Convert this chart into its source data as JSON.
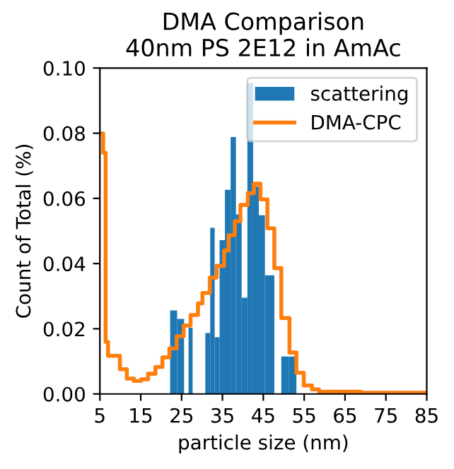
{
  "chart_data": {
    "type": "histogram",
    "title": "DMA Comparison\n40nm PS 2E12 in AmAc",
    "xlabel": "particle size (nm)",
    "ylabel": "Count of Total (%)",
    "bins": [
      22.2,
      23.9,
      25.6,
      26.7,
      27.7,
      30.8,
      32.0,
      33.1,
      34.3,
      35.6,
      37.0,
      38.3,
      39.7,
      41.1,
      42.5,
      43.9,
      45.4,
      47.7,
      49.4,
      51.2,
      53.1
    ],
    "series": [
      {
        "name": "scattering",
        "color": "#1f77b4",
        "values": [
          0.0256,
          0.023,
          0,
          0.0203,
          0,
          0.0187,
          0.051,
          0.0174,
          0.0472,
          0.0626,
          0.0788,
          0.0551,
          0.0295,
          0.0954,
          0.0637,
          0.0548,
          0.0364,
          0,
          0.0115,
          0.0115
        ]
      },
      {
        "name": "DMA-CPC",
        "type": "step",
        "color": "#ff7f0e",
        "x": [
          5.6,
          5.8,
          6.4,
          7.0,
          8.1,
          9.9,
          11.6,
          13.3,
          15.1,
          16.8,
          18.6,
          20.3,
          22.0,
          23.8,
          25.5,
          27.2,
          29.0,
          30.1,
          31.9,
          33.6,
          35.4,
          36.5,
          38.0,
          39.4,
          41.2,
          42.7,
          44.3,
          46.0,
          47.7,
          49.4,
          51.4,
          53.1,
          54.9,
          56.9,
          58.6,
          68.9,
          85.0
        ],
        "values": [
          0.0799,
          0.074,
          0.016,
          0.0117,
          0.0117,
          0.0076,
          0.0047,
          0.004,
          0.0045,
          0.0062,
          0.0083,
          0.0112,
          0.014,
          0.0177,
          0.021,
          0.0242,
          0.0278,
          0.031,
          0.0357,
          0.0393,
          0.044,
          0.0487,
          0.053,
          0.058,
          0.0616,
          0.0645,
          0.0597,
          0.0508,
          0.0386,
          0.0233,
          0.0127,
          0.0065,
          0.0026,
          0.0014,
          0.0007,
          0.0004,
          0.0004
        ]
      }
    ],
    "xlim": [
      5,
      85
    ],
    "xticks": [
      5,
      15,
      25,
      35,
      45,
      55,
      65,
      75,
      85
    ],
    "ylim": [
      0,
      0.1
    ],
    "yticks": [
      {
        "value": 0,
        "label": "0.00"
      },
      {
        "value": 0.02,
        "label": "0.02"
      },
      {
        "value": 0.04,
        "label": "0.04"
      },
      {
        "value": 0.06,
        "label": "0.06"
      },
      {
        "value": 0.08,
        "label": "0.08"
      },
      {
        "value": 0.1,
        "label": "0.10"
      }
    ],
    "legend": "top right",
    "grid": false
  }
}
